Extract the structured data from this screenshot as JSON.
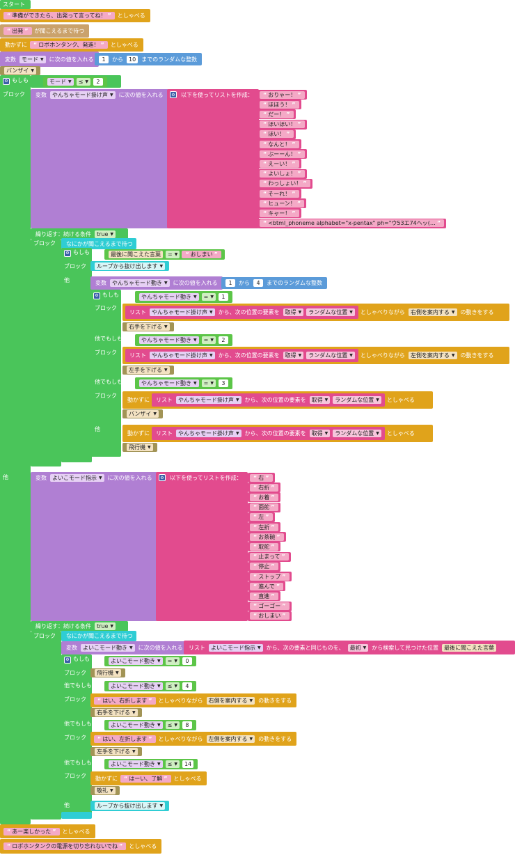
{
  "start": "スタート",
  "say": "としゃべる",
  "move_say": "動かずに",
  "wait_hear": "が聞こえるまで待つ",
  "wait_something": "なにかが聞こえるまで待つ",
  "var": "変数",
  "set_value": "に次の値を入れる",
  "from": "から",
  "random_int": "までのランダムな整数",
  "if": "もしも",
  "block": "ブロック",
  "else": "他",
  "elseif": "他でもしも",
  "repeat_while": "繰り返す：続ける条件",
  "break_loop": "ループから抜け出します",
  "last_heard": "最後に聞こえた言葉",
  "create_list": "以下を使ってリストを作成：",
  "list": "リスト",
  "list_item_from": "から、次の位置の要素を",
  "get": "取得",
  "random_pos": "ランダムな位置",
  "say_while": "としゃべりながら",
  "motion_suffix": "の動きをする",
  "guide_right": "右側を案内する",
  "guide_left": "左側を案内する",
  "find_same": "から、次の要素と同じものを、",
  "first": "最初",
  "find_pos": "から検索して見つけた位置",
  "true": "true",
  "eq": "=",
  "le": "≤",
  "msg_ready": "準備ができたら、出発って言ってね！",
  "msg_go": "出発",
  "msg_robot": "ロボホンタンク、発進！",
  "var_mode": "モード",
  "n1": "1",
  "n10": "10",
  "n2": "2",
  "n3": "3",
  "n4": "4",
  "n0": "0",
  "n8": "8",
  "n14": "14",
  "pose_banzai": "バンザイ",
  "var_yancha_voice": "やんちゃモード掛け声",
  "yancha_words": [
    "おりゃー！",
    "ほほう！",
    "だー！",
    "ほいほい！",
    "ほい！",
    "なんと！",
    "ぶーーん！",
    "えーい！",
    "よいしょ！",
    "わっしょい！",
    "そーれ！",
    "ヒューン！",
    "キャー！",
    "<btml_phoneme alphabet=\"x-pentax\" ph=\"ウ53エ74ヘッ(…"
  ],
  "msg_oshimai": "おしまい",
  "var_yancha_move": "やんちゃモード動き",
  "pose_right_hand": "右手を下げる",
  "pose_left_hand": "左手を下げる",
  "pose_airplane": "飛行機",
  "var_yoiko_cmd": "よいこモード指示",
  "yoiko_words": [
    "右",
    "右折",
    "お着",
    "面舵",
    "左",
    "左折",
    "お茶碗",
    "取舵",
    "止まって",
    "停止",
    "ストップ",
    "進んで",
    "直進",
    "ゴーゴー",
    "おしまい"
  ],
  "var_yoiko_move": "よいこモード動き",
  "msg_turn_right": "はい、右折します",
  "msg_turn_left": "はい、左折します",
  "msg_ok": "はーい、了解",
  "pose_salute": "敬礼",
  "msg_fun": "あー楽しかった",
  "msg_power": "ロボホンタンクの電源を切り忘れないでね"
}
